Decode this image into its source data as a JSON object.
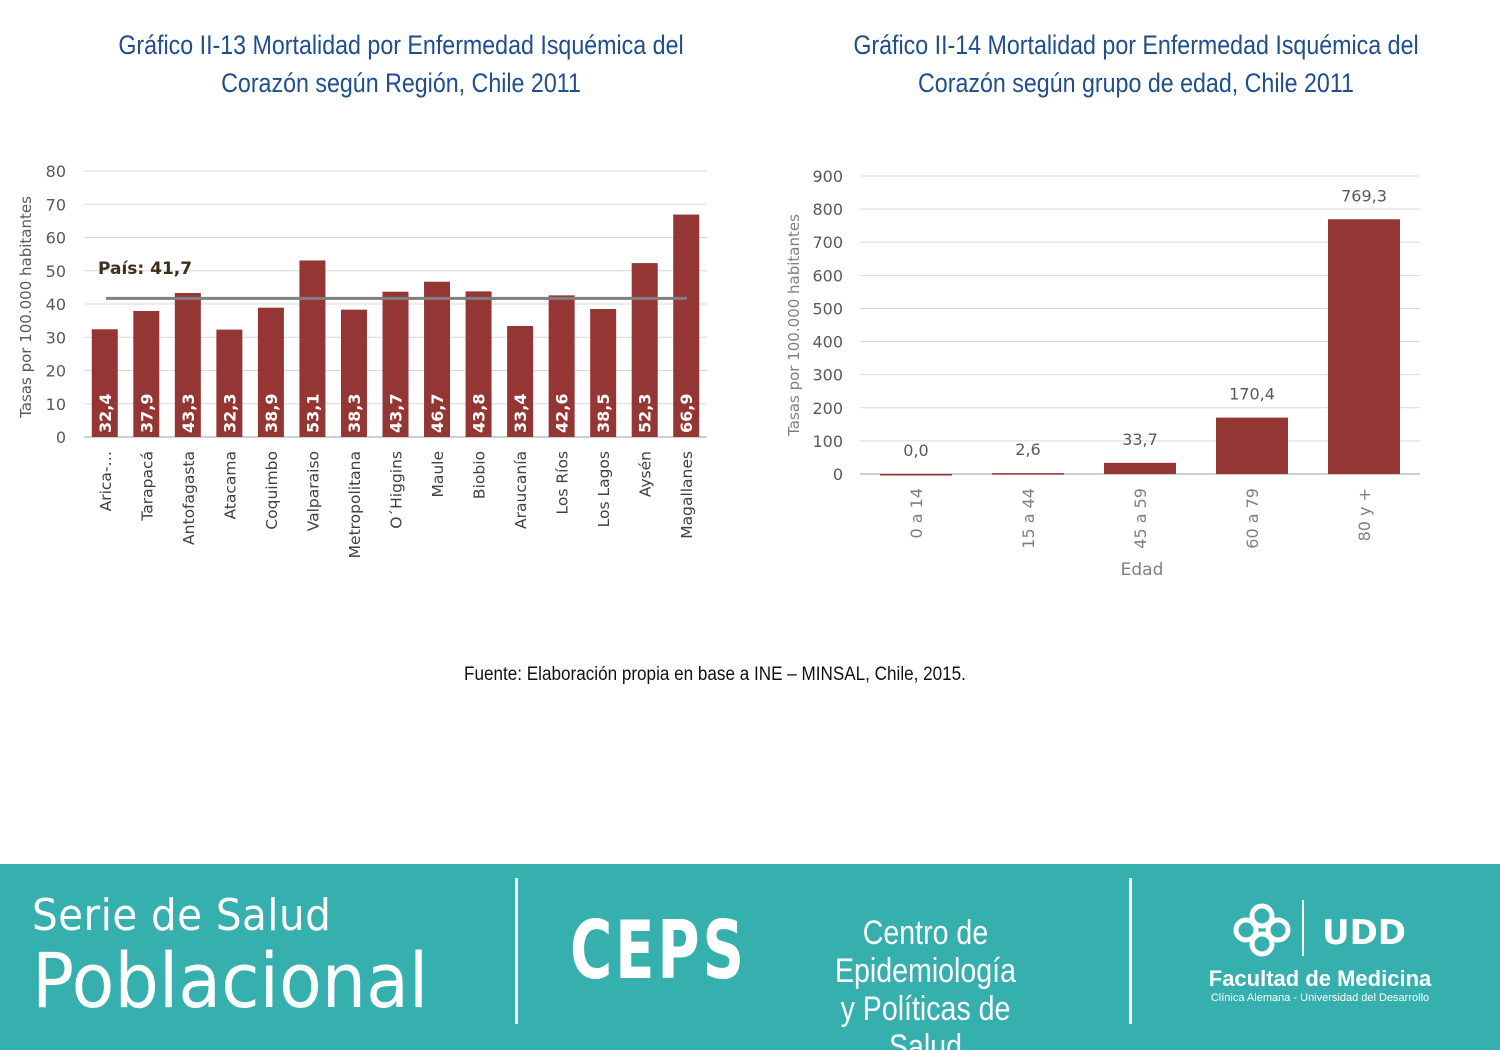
{
  "chart_data": [
    {
      "type": "bar",
      "title": "Gráfico II-13 Mortalidad por Enfermedad Isquémica del Corazón según Región, Chile 2011",
      "xlabel": "",
      "ylabel": "Tasas por 100.000 habitantes",
      "ylim": [
        0,
        80
      ],
      "yticks": [
        "0",
        "10",
        "20",
        "30",
        "40",
        "50",
        "60",
        "70",
        "80"
      ],
      "categories": [
        "Arica-…",
        "Tarapacá",
        "Antofagasta",
        "Atacama",
        "Coquimbo",
        "Valparaiso",
        "Metropolitana",
        "O´Higgins",
        "Maule",
        "Biobio",
        "Araucanía",
        "Los Ríos",
        "Los Lagos",
        "Aysén",
        "Magallanes"
      ],
      "values": [
        32.4,
        37.9,
        43.3,
        32.3,
        38.9,
        53.1,
        38.3,
        43.7,
        46.7,
        43.8,
        33.4,
        42.6,
        38.5,
        52.3,
        66.9
      ],
      "value_labels": [
        "32,4",
        "37,9",
        "43,3",
        "32,3",
        "38,9",
        "53,1",
        "38,3",
        "43,7",
        "46,7",
        "43,8",
        "33,4",
        "42,6",
        "38,5",
        "52,3",
        "66,9"
      ],
      "reference_line": {
        "value": 41.7,
        "label": "País: 41,7"
      },
      "grid": true,
      "bar_color": "#943634",
      "line_color": "#7f7f7f"
    },
    {
      "type": "bar",
      "title": "Gráfico II-14 Mortalidad por Enfermedad Isquémica del Corazón según grupo de edad, Chile 2011",
      "xlabel": "Edad",
      "ylabel": "Tasas por 100.000 habitantes",
      "ylim": [
        0,
        900
      ],
      "yticks": [
        "0",
        "100",
        "200",
        "300",
        "400",
        "500",
        "600",
        "700",
        "800",
        "900"
      ],
      "categories": [
        "0 a 14",
        "15 a 44",
        "45 a 59",
        "60 a 79",
        "80 y +"
      ],
      "values": [
        0.0,
        2.6,
        33.7,
        170.4,
        769.3
      ],
      "value_labels": [
        "0,0",
        "2,6",
        "33,7",
        "170,4",
        "769,3"
      ],
      "grid": true,
      "bar_color": "#943634"
    }
  ],
  "source": "Fuente: Elaboración propia en base a INE – MINSAL, Chile, 2015.",
  "footer": {
    "serie_line1": "Serie de Salud",
    "serie_line2": "Poblacional",
    "ceps": "CEPS",
    "ceps_line1": "Centro de Epidemiología",
    "ceps_line2": "y Políticas de Salud",
    "udd_logo": "UDD",
    "fm_title": "Facultad de Medicina",
    "fm_sub": "Clínica Alemana - Universidad del Desarrollo",
    "bg_color": "#36b0ae",
    "logo_icon": "clinica-alemana-knot-icon"
  }
}
